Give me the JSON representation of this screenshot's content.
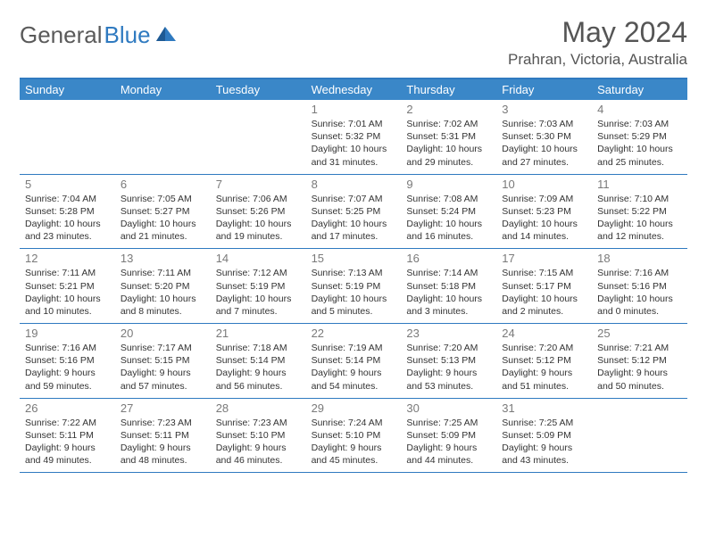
{
  "logo": {
    "text1": "General",
    "text2": "Blue"
  },
  "title": "May 2024",
  "location": "Prahran, Victoria, Australia",
  "colors": {
    "header_bar": "#3a87c8",
    "border": "#2f7ac0",
    "white": "#ffffff",
    "text": "#333333",
    "muted": "#7a7a7a",
    "logo_gray": "#5a5a5a",
    "logo_blue": "#2f7ac0"
  },
  "typography": {
    "title_fontsize": 32,
    "location_fontsize": 17,
    "dayhead_fontsize": 13,
    "daynum_fontsize": 13,
    "info_fontsize": 10.5
  },
  "day_headers": [
    "Sunday",
    "Monday",
    "Tuesday",
    "Wednesday",
    "Thursday",
    "Friday",
    "Saturday"
  ],
  "weeks": [
    [
      {
        "day": "",
        "sunrise": "",
        "sunset": "",
        "daylight": ""
      },
      {
        "day": "",
        "sunrise": "",
        "sunset": "",
        "daylight": ""
      },
      {
        "day": "",
        "sunrise": "",
        "sunset": "",
        "daylight": ""
      },
      {
        "day": "1",
        "sunrise": "Sunrise: 7:01 AM",
        "sunset": "Sunset: 5:32 PM",
        "daylight": "Daylight: 10 hours and 31 minutes."
      },
      {
        "day": "2",
        "sunrise": "Sunrise: 7:02 AM",
        "sunset": "Sunset: 5:31 PM",
        "daylight": "Daylight: 10 hours and 29 minutes."
      },
      {
        "day": "3",
        "sunrise": "Sunrise: 7:03 AM",
        "sunset": "Sunset: 5:30 PM",
        "daylight": "Daylight: 10 hours and 27 minutes."
      },
      {
        "day": "4",
        "sunrise": "Sunrise: 7:03 AM",
        "sunset": "Sunset: 5:29 PM",
        "daylight": "Daylight: 10 hours and 25 minutes."
      }
    ],
    [
      {
        "day": "5",
        "sunrise": "Sunrise: 7:04 AM",
        "sunset": "Sunset: 5:28 PM",
        "daylight": "Daylight: 10 hours and 23 minutes."
      },
      {
        "day": "6",
        "sunrise": "Sunrise: 7:05 AM",
        "sunset": "Sunset: 5:27 PM",
        "daylight": "Daylight: 10 hours and 21 minutes."
      },
      {
        "day": "7",
        "sunrise": "Sunrise: 7:06 AM",
        "sunset": "Sunset: 5:26 PM",
        "daylight": "Daylight: 10 hours and 19 minutes."
      },
      {
        "day": "8",
        "sunrise": "Sunrise: 7:07 AM",
        "sunset": "Sunset: 5:25 PM",
        "daylight": "Daylight: 10 hours and 17 minutes."
      },
      {
        "day": "9",
        "sunrise": "Sunrise: 7:08 AM",
        "sunset": "Sunset: 5:24 PM",
        "daylight": "Daylight: 10 hours and 16 minutes."
      },
      {
        "day": "10",
        "sunrise": "Sunrise: 7:09 AM",
        "sunset": "Sunset: 5:23 PM",
        "daylight": "Daylight: 10 hours and 14 minutes."
      },
      {
        "day": "11",
        "sunrise": "Sunrise: 7:10 AM",
        "sunset": "Sunset: 5:22 PM",
        "daylight": "Daylight: 10 hours and 12 minutes."
      }
    ],
    [
      {
        "day": "12",
        "sunrise": "Sunrise: 7:11 AM",
        "sunset": "Sunset: 5:21 PM",
        "daylight": "Daylight: 10 hours and 10 minutes."
      },
      {
        "day": "13",
        "sunrise": "Sunrise: 7:11 AM",
        "sunset": "Sunset: 5:20 PM",
        "daylight": "Daylight: 10 hours and 8 minutes."
      },
      {
        "day": "14",
        "sunrise": "Sunrise: 7:12 AM",
        "sunset": "Sunset: 5:19 PM",
        "daylight": "Daylight: 10 hours and 7 minutes."
      },
      {
        "day": "15",
        "sunrise": "Sunrise: 7:13 AM",
        "sunset": "Sunset: 5:19 PM",
        "daylight": "Daylight: 10 hours and 5 minutes."
      },
      {
        "day": "16",
        "sunrise": "Sunrise: 7:14 AM",
        "sunset": "Sunset: 5:18 PM",
        "daylight": "Daylight: 10 hours and 3 minutes."
      },
      {
        "day": "17",
        "sunrise": "Sunrise: 7:15 AM",
        "sunset": "Sunset: 5:17 PM",
        "daylight": "Daylight: 10 hours and 2 minutes."
      },
      {
        "day": "18",
        "sunrise": "Sunrise: 7:16 AM",
        "sunset": "Sunset: 5:16 PM",
        "daylight": "Daylight: 10 hours and 0 minutes."
      }
    ],
    [
      {
        "day": "19",
        "sunrise": "Sunrise: 7:16 AM",
        "sunset": "Sunset: 5:16 PM",
        "daylight": "Daylight: 9 hours and 59 minutes."
      },
      {
        "day": "20",
        "sunrise": "Sunrise: 7:17 AM",
        "sunset": "Sunset: 5:15 PM",
        "daylight": "Daylight: 9 hours and 57 minutes."
      },
      {
        "day": "21",
        "sunrise": "Sunrise: 7:18 AM",
        "sunset": "Sunset: 5:14 PM",
        "daylight": "Daylight: 9 hours and 56 minutes."
      },
      {
        "day": "22",
        "sunrise": "Sunrise: 7:19 AM",
        "sunset": "Sunset: 5:14 PM",
        "daylight": "Daylight: 9 hours and 54 minutes."
      },
      {
        "day": "23",
        "sunrise": "Sunrise: 7:20 AM",
        "sunset": "Sunset: 5:13 PM",
        "daylight": "Daylight: 9 hours and 53 minutes."
      },
      {
        "day": "24",
        "sunrise": "Sunrise: 7:20 AM",
        "sunset": "Sunset: 5:12 PM",
        "daylight": "Daylight: 9 hours and 51 minutes."
      },
      {
        "day": "25",
        "sunrise": "Sunrise: 7:21 AM",
        "sunset": "Sunset: 5:12 PM",
        "daylight": "Daylight: 9 hours and 50 minutes."
      }
    ],
    [
      {
        "day": "26",
        "sunrise": "Sunrise: 7:22 AM",
        "sunset": "Sunset: 5:11 PM",
        "daylight": "Daylight: 9 hours and 49 minutes."
      },
      {
        "day": "27",
        "sunrise": "Sunrise: 7:23 AM",
        "sunset": "Sunset: 5:11 PM",
        "daylight": "Daylight: 9 hours and 48 minutes."
      },
      {
        "day": "28",
        "sunrise": "Sunrise: 7:23 AM",
        "sunset": "Sunset: 5:10 PM",
        "daylight": "Daylight: 9 hours and 46 minutes."
      },
      {
        "day": "29",
        "sunrise": "Sunrise: 7:24 AM",
        "sunset": "Sunset: 5:10 PM",
        "daylight": "Daylight: 9 hours and 45 minutes."
      },
      {
        "day": "30",
        "sunrise": "Sunrise: 7:25 AM",
        "sunset": "Sunset: 5:09 PM",
        "daylight": "Daylight: 9 hours and 44 minutes."
      },
      {
        "day": "31",
        "sunrise": "Sunrise: 7:25 AM",
        "sunset": "Sunset: 5:09 PM",
        "daylight": "Daylight: 9 hours and 43 minutes."
      },
      {
        "day": "",
        "sunrise": "",
        "sunset": "",
        "daylight": ""
      }
    ]
  ]
}
